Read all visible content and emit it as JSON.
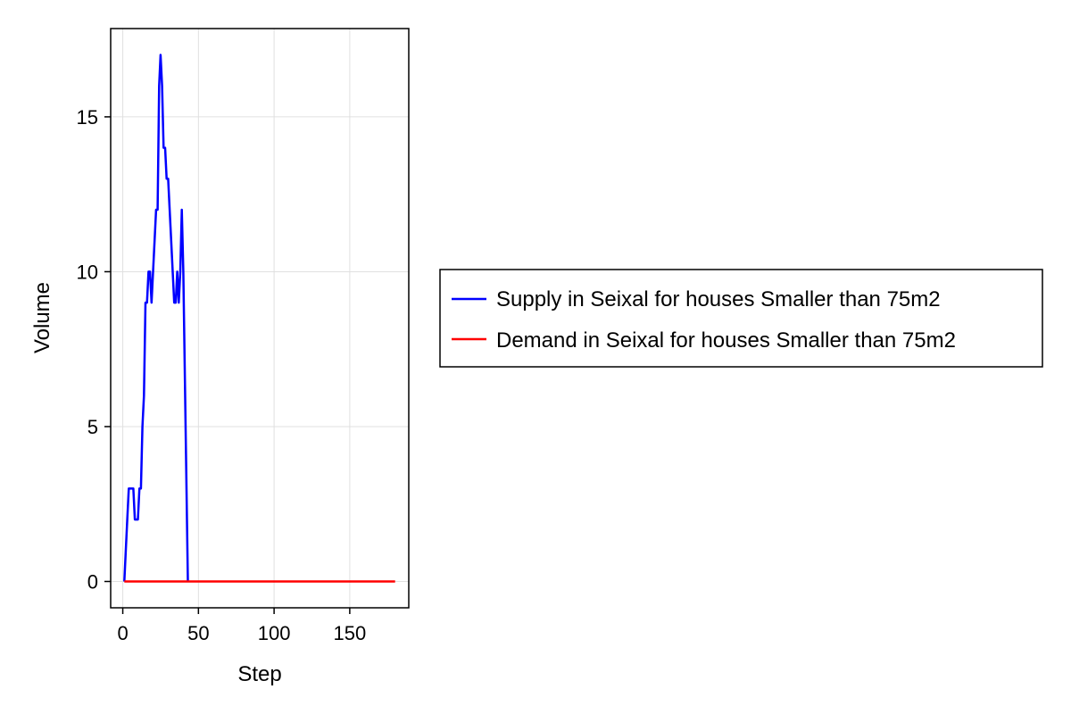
{
  "chart_data": {
    "type": "line",
    "xlabel": "Step",
    "ylabel": "Volume",
    "xlim": [
      -8,
      189
    ],
    "ylim": [
      -0.85,
      17.85
    ],
    "xticks": [
      0,
      50,
      100,
      150
    ],
    "yticks": [
      0,
      5,
      10,
      15
    ],
    "grid": true,
    "legend_position": "right",
    "series": [
      {
        "name": "Supply in Seixal for houses Smaller than 75m2",
        "color": "#0000ff",
        "x": [
          1,
          3,
          4,
          5,
          6,
          7,
          8,
          9,
          10,
          11,
          12,
          13,
          14,
          15,
          16,
          17,
          18,
          19,
          20,
          21,
          22,
          23,
          24,
          25,
          26,
          27,
          28,
          29,
          30,
          31,
          32,
          33,
          34,
          35,
          36,
          37,
          38,
          39,
          40,
          43
        ],
        "y": [
          0,
          2,
          3,
          3,
          3,
          3,
          2,
          2,
          2,
          3,
          3,
          5,
          6,
          9,
          9,
          10,
          10,
          9,
          10,
          11,
          12,
          12,
          16,
          17,
          16,
          14,
          14,
          13,
          13,
          12,
          11,
          10,
          9,
          9,
          10,
          9,
          10,
          12,
          10,
          0
        ]
      },
      {
        "name": "Demand in Seixal for houses Smaller than 75m2",
        "color": "#ff0000",
        "x": [
          1,
          180
        ],
        "y": [
          0,
          0
        ]
      }
    ]
  }
}
